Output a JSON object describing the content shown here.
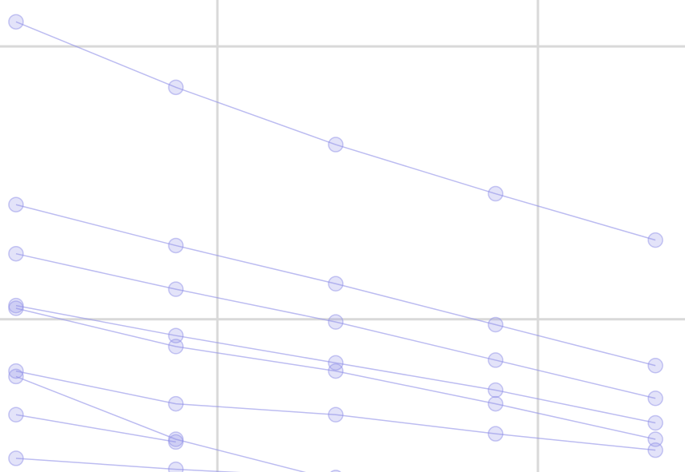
{
  "chart_data": {
    "type": "line",
    "x": [
      0,
      1,
      2,
      3,
      4
    ],
    "xlim": [
      -0.1,
      4.185
    ],
    "ylim": [
      -5.6,
      11.7
    ],
    "xticks": [
      1.26,
      3.265
    ],
    "yticks": [
      0,
      10
    ],
    "grid": true,
    "series": [
      {
        "color": "#8f8fe8",
        "values": [
          10.9,
          8.5,
          6.4,
          4.6,
          2.9
        ]
      },
      {
        "color": "#8f8fe8",
        "values": [
          4.2,
          2.7,
          1.3,
          -0.2,
          -1.7
        ]
      },
      {
        "color": "#8f8fe8",
        "values": [
          2.4,
          1.1,
          -0.1,
          -1.5,
          -2.9
        ]
      },
      {
        "color": "#8f8fe8",
        "values": [
          0.5,
          -0.6,
          -1.6,
          -2.6,
          -3.8
        ]
      },
      {
        "color": "#8f8fe8",
        "values": [
          0.4,
          -1.0,
          -1.9,
          -3.1,
          -4.4
        ]
      },
      {
        "color": "#8f8fe8",
        "values": [
          -1.9,
          -3.1,
          -3.5,
          -4.2,
          -4.8
        ]
      },
      {
        "color": "#8f8fe8",
        "values": [
          -2.1,
          -4.4,
          -5.9,
          null,
          null
        ]
      },
      {
        "color": "#8f8fe8",
        "values": [
          -3.5,
          -4.5,
          null,
          null,
          null
        ]
      },
      {
        "color": "#8f8fe8",
        "values": [
          -5.1,
          -5.5,
          -5.8,
          null,
          null
        ]
      }
    ]
  }
}
